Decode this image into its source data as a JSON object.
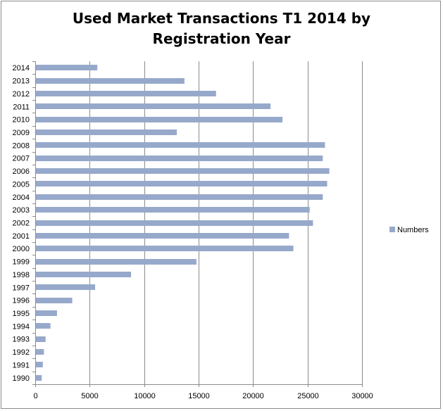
{
  "chart_data": {
    "type": "bar",
    "orientation": "horizontal",
    "title": "Used Market Transactions T1 2014 by\nRegistration Year",
    "xlabel": "",
    "ylabel": "",
    "xlim": [
      0,
      30000
    ],
    "x_ticks": [
      0,
      5000,
      10000,
      15000,
      20000,
      25000,
      30000
    ],
    "grid": "vertical",
    "legend_position": "right",
    "bar_color": "#97A9CB",
    "categories": [
      "2014",
      "2013",
      "2012",
      "2011",
      "2010",
      "2009",
      "2008",
      "2007",
      "2006",
      "2005",
      "2004",
      "2003",
      "2002",
      "2001",
      "2000",
      "1999",
      "1998",
      "1997",
      "1996",
      "1995",
      "1994",
      "1993",
      "1992",
      "1991",
      "1990"
    ],
    "series": [
      {
        "name": "Numbers",
        "values": [
          5700,
          13700,
          16600,
          21600,
          22700,
          13000,
          26600,
          26400,
          27000,
          26800,
          26400,
          25200,
          25500,
          23300,
          23700,
          14800,
          8800,
          5500,
          3400,
          2000,
          1400,
          950,
          800,
          700,
          600
        ]
      }
    ]
  }
}
